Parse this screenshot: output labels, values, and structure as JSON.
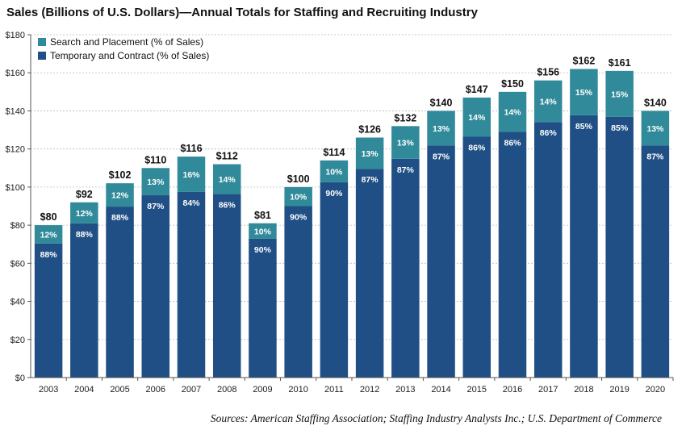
{
  "chart_data": {
    "type": "bar",
    "stacked": true,
    "title": "Sales (Billions of U.S. Dollars)—Annual Totals for Staffing and Recruiting Industry",
    "source": "Sources: American Staffing Association; Staffing Industry Analysts Inc.; U.S. Department of Commerce",
    "categories": [
      "2003",
      "2004",
      "2005",
      "2006",
      "2007",
      "2008",
      "2009",
      "2010",
      "2011",
      "2012",
      "2013",
      "2014",
      "2015",
      "2016",
      "2017",
      "2018",
      "2019",
      "2020"
    ],
    "totals": [
      80,
      92,
      102,
      110,
      116,
      112,
      81,
      100,
      114,
      126,
      132,
      140,
      147,
      150,
      156,
      162,
      161,
      140
    ],
    "total_labels": [
      "$80",
      "$92",
      "$102",
      "$110",
      "$116",
      "$112",
      "$81",
      "$100",
      "$114",
      "$126",
      "$132",
      "$140",
      "$147",
      "$150",
      "$156",
      "$162",
      "$161",
      "$140"
    ],
    "series": [
      {
        "name": "Temporary and Contract (% of Sales)",
        "color": "#1f4f85",
        "percent": [
          88,
          88,
          88,
          87,
          84,
          86,
          90,
          90,
          90,
          87,
          87,
          87,
          86,
          86,
          86,
          85,
          85,
          87
        ],
        "labels": [
          "88%",
          "88%",
          "88%",
          "87%",
          "84%",
          "86%",
          "90%",
          "90%",
          "90%",
          "87%",
          "87%",
          "87%",
          "86%",
          "86%",
          "86%",
          "85%",
          "85%",
          "87%"
        ]
      },
      {
        "name": "Search and Placement (% of Sales)",
        "color": "#318a9a",
        "percent": [
          12,
          12,
          12,
          13,
          16,
          14,
          10,
          10,
          10,
          13,
          13,
          13,
          14,
          14,
          14,
          15,
          15,
          13
        ],
        "labels": [
          "12%",
          "12%",
          "12%",
          "13%",
          "16%",
          "14%",
          "10%",
          "10%",
          "10%",
          "13%",
          "13%",
          "13%",
          "14%",
          "14%",
          "14%",
          "15%",
          "15%",
          "13%"
        ]
      }
    ],
    "ylim": [
      0,
      180
    ],
    "yticks": [
      0,
      20,
      40,
      60,
      80,
      100,
      120,
      140,
      160,
      180
    ],
    "ytick_labels": [
      "$0",
      "$20",
      "$40",
      "$60",
      "$80",
      "$100",
      "$120",
      "$140",
      "$160",
      "$180"
    ],
    "grid": true,
    "legend_position": "top-left"
  }
}
